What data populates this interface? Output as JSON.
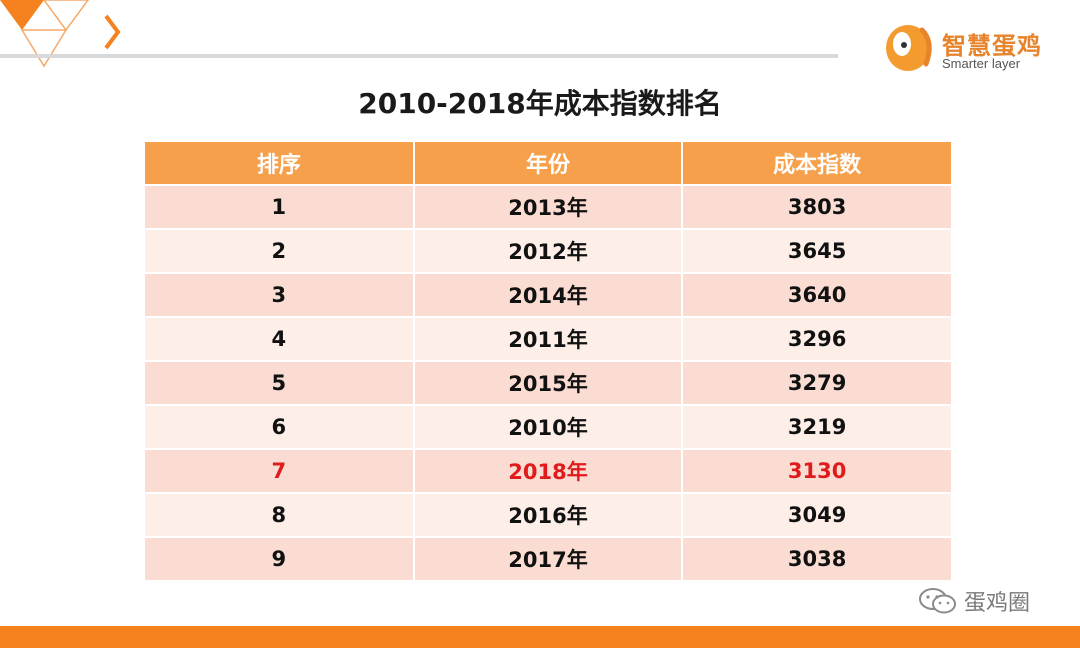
{
  "title": "2010-2018年成本指数排名",
  "logo": {
    "cn": "智慧蛋鸡",
    "en": "Smarter layer"
  },
  "table": {
    "headers": [
      "排序",
      "年份",
      "成本指数"
    ],
    "rows": [
      [
        "1",
        "2013年",
        "3803"
      ],
      [
        "2",
        "2012年",
        "3645"
      ],
      [
        "3",
        "2014年",
        "3640"
      ],
      [
        "4",
        "2011年",
        "3296"
      ],
      [
        "5",
        "2015年",
        "3279"
      ],
      [
        "6",
        "2010年",
        "3219"
      ],
      [
        "7",
        "2018年",
        "3130"
      ],
      [
        "8",
        "2016年",
        "3049"
      ],
      [
        "9",
        "2017年",
        "3038"
      ]
    ],
    "highlight_row": 6
  },
  "watermark": {
    "text": "蛋鸡圈",
    "icon": "wechat-icon"
  },
  "colors": {
    "accent": "#f5821f",
    "header_bg": "#f7a04c",
    "row_odd": "#fadcd2",
    "row_even": "#fdeee8",
    "highlight_text": "#e01b1b"
  }
}
